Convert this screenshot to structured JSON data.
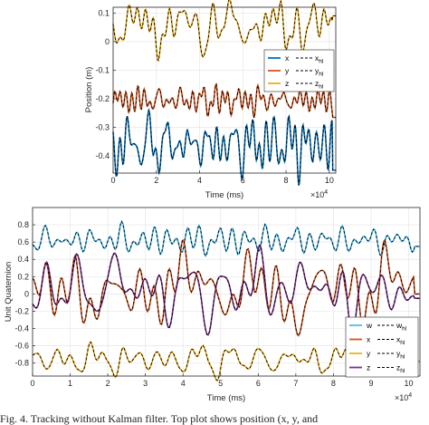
{
  "caption": "Fig. 4.   Tracking without Kalman filter. Top plot shows position (x, y, and",
  "chart_data": [
    {
      "type": "line",
      "xlabel": "Time (ms)",
      "ylabel": "Position (m)",
      "x_multiplier_label": "×10",
      "x_multiplier_exp": "4",
      "xlim": [
        0,
        10.3
      ],
      "ylim": [
        -0.46,
        0.12
      ],
      "xticks": [
        0,
        2,
        4,
        6,
        8,
        10
      ],
      "yticks": [
        0.1,
        0,
        -0.1,
        -0.2,
        -0.3,
        -0.4
      ],
      "ytick_labels": [
        "0.1",
        "0",
        "-0.1",
        "-0.2",
        "-0.3",
        "-0.4"
      ],
      "grid": true,
      "legend_position": "right-middle",
      "series": [
        {
          "name": "x",
          "color": "#0072BD",
          "base": -0.36,
          "amp": 0.025,
          "end": -0.45,
          "seed": 3
        },
        {
          "name": "y",
          "color": "#D95319",
          "base": -0.205,
          "amp": 0.015,
          "end": -0.265,
          "seed": 7
        },
        {
          "name": "z",
          "color": "#EDB120",
          "base": 0.055,
          "amp": 0.03,
          "end": 0.09,
          "seed": 11
        }
      ],
      "reference_series": [
        {
          "name": "x_hl"
        },
        {
          "name": "y_hl"
        },
        {
          "name": "z_hl"
        }
      ]
    },
    {
      "type": "line",
      "xlabel": "Time (ms)",
      "ylabel": "Unit Quaternion",
      "x_multiplier_label": "×10",
      "x_multiplier_exp": "4",
      "xlim": [
        0,
        10.3
      ],
      "ylim": [
        -0.95,
        1.0
      ],
      "xticks": [
        0,
        1,
        2,
        3,
        4,
        5,
        6,
        7,
        8,
        9,
        10
      ],
      "yticks": [
        0.8,
        0.6,
        0.4,
        0.2,
        0,
        -0.2,
        -0.4,
        -0.6,
        -0.8
      ],
      "ytick_labels": [
        "0.8",
        "0.6",
        "0.4",
        "0.2",
        "0",
        "-0.2",
        "-0.4",
        "-0.6",
        "-0.8"
      ],
      "grid": true,
      "legend_position": "bottom-right",
      "series": [
        {
          "name": "w",
          "color": "#4DBEEE",
          "base": 0.62,
          "amp": 0.05,
          "end": 0.55,
          "seed": 5
        },
        {
          "name": "x",
          "color": "#D95319",
          "base": 0.05,
          "amp": 0.13,
          "end": 0.0,
          "seed": 9
        },
        {
          "name": "y",
          "color": "#EDB120",
          "base": -0.76,
          "amp": 0.05,
          "end": -0.78,
          "seed": 13
        },
        {
          "name": "z",
          "color": "#7E2F8E",
          "base": 0.05,
          "amp": 0.12,
          "end": -0.05,
          "seed": 17
        }
      ],
      "reference_series": [
        {
          "name": "w_hl"
        },
        {
          "name": "x_hl"
        },
        {
          "name": "y_hl"
        },
        {
          "name": "z_hl"
        }
      ]
    }
  ]
}
